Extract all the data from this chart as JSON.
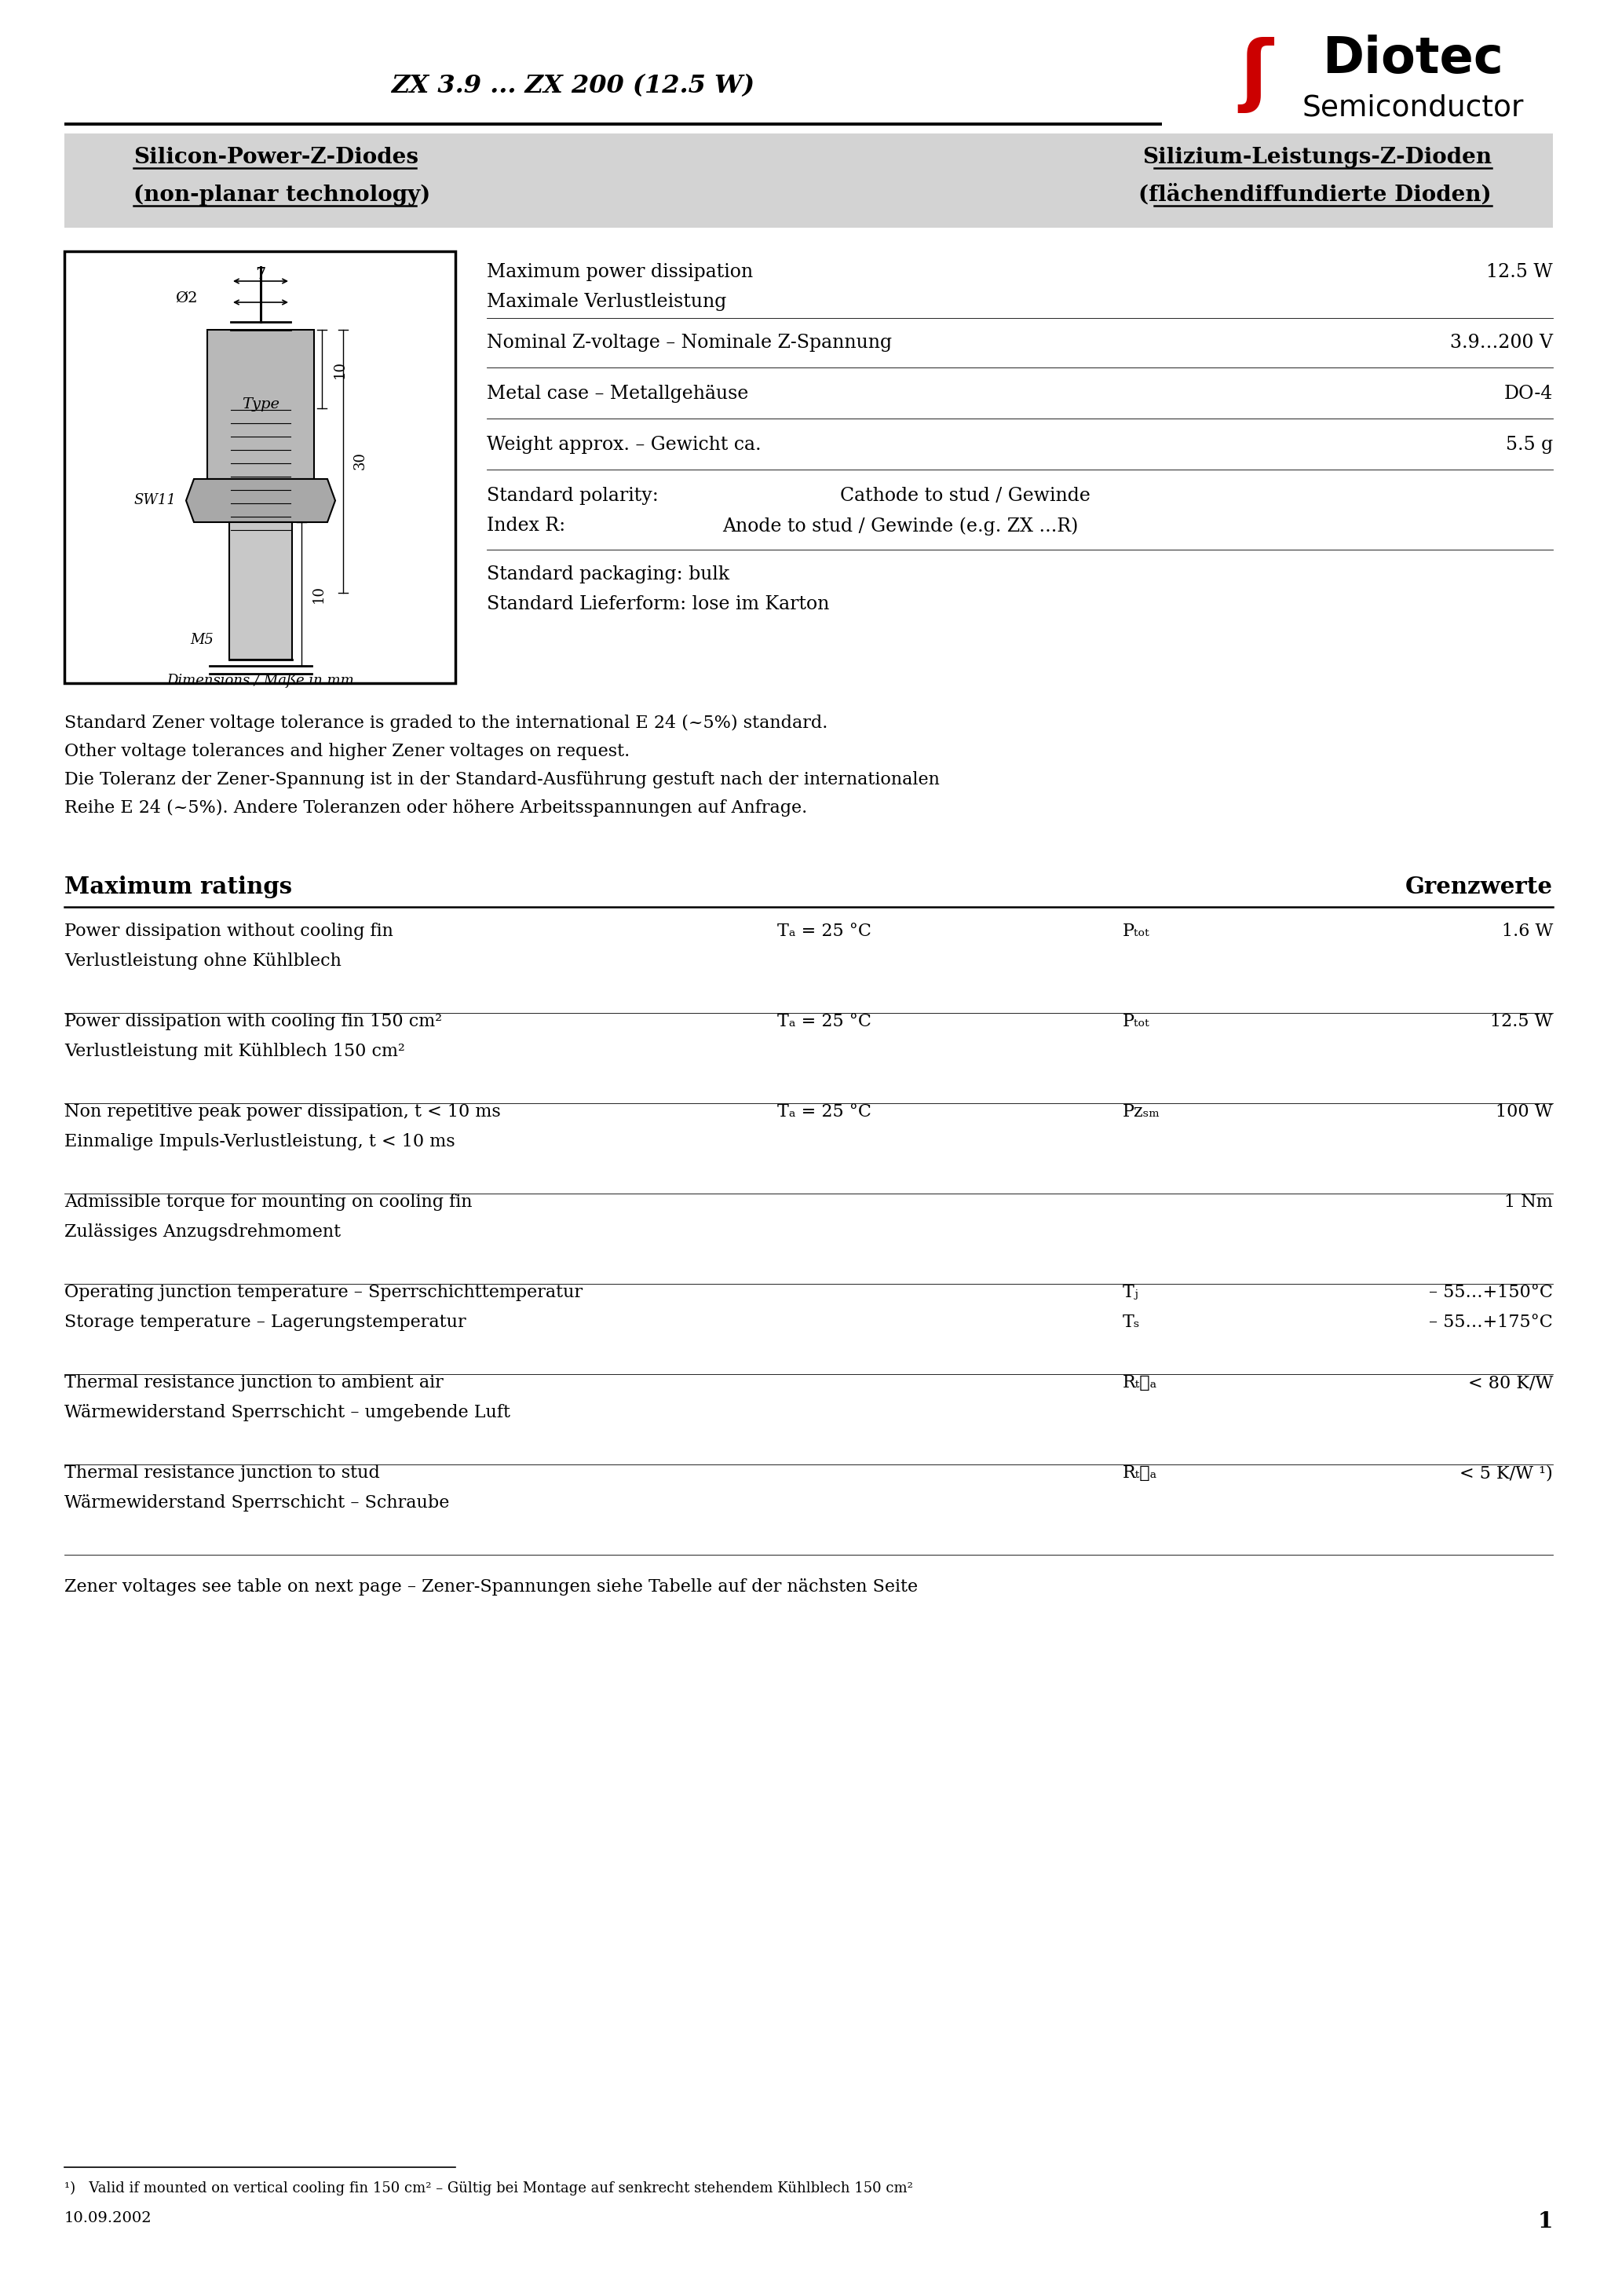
{
  "title": "ZX 3.9 ... ZX 200 (12.5 W)",
  "logo_diotec": "Diotec",
  "logo_semi": "Semiconductor",
  "header_left_line1": "Silicon-Power-Z-Diodes",
  "header_left_line2": "(non-planar technology)",
  "header_right_line1": "Silizium-Leistungs-Z-Dioden",
  "header_right_line2": "(flächendiffundierte Dioden)",
  "dim_label": "Dimensions / Maße in mm",
  "note_line1": "Standard Zener voltage tolerance is graded to the international E 24 (~5%) standard.",
  "note_line2": "Other voltage tolerances and higher Zener voltages on request.",
  "note_line3": "Die Toleranz der Zener-Spannung ist in der Standard-Ausführung gestuft nach der internationalen",
  "note_line4": "Reihe E 24 (~5%). Andere Toleranzen oder höhere Arbeitsspannungen auf Anfrage.",
  "max_ratings_title": "Maximum ratings",
  "max_ratings_right": "Grenzwerte",
  "zener_note": "Zener voltages see table on next page – Zener-Spannungen siehe Tabelle auf der nächsten Seite",
  "footnote": "¹)   Valid if mounted on vertical cooling fin 150 cm² – Gültig bei Montage auf senkrecht stehendem Kühlblech 150 cm²",
  "date": "10.09.2002",
  "page": "1",
  "bg_color": "#ffffff",
  "header_bg": "#d3d3d3",
  "logo_color": "#cc0000"
}
